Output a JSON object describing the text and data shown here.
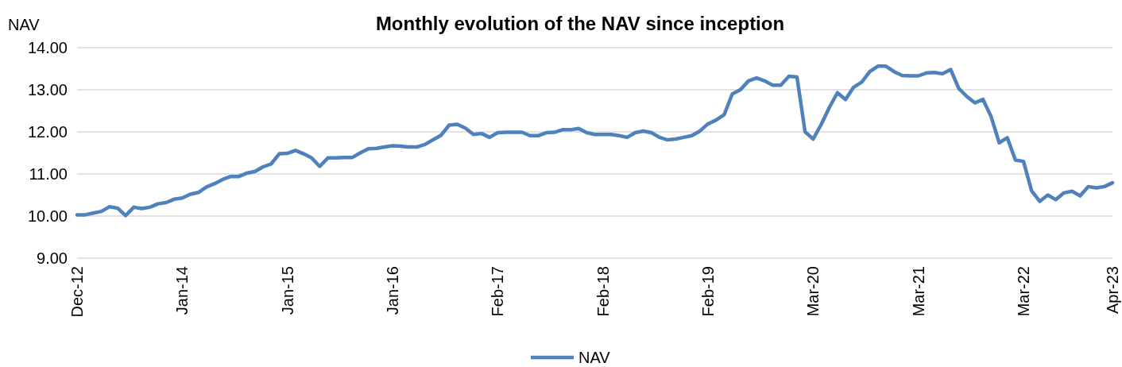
{
  "chart_data": {
    "type": "line",
    "title": "Monthly evolution of the NAV since inception",
    "ylabel": "NAV",
    "categories": [
      "Dec-12",
      null,
      null,
      null,
      null,
      null,
      null,
      null,
      null,
      null,
      null,
      null,
      null,
      "Jan-14",
      null,
      null,
      null,
      null,
      null,
      null,
      null,
      null,
      null,
      null,
      null,
      null,
      "Jan-15",
      null,
      null,
      null,
      null,
      null,
      null,
      null,
      null,
      null,
      null,
      null,
      null,
      "Jan-16",
      null,
      null,
      null,
      null,
      null,
      null,
      null,
      null,
      null,
      null,
      null,
      null,
      "Feb-17",
      null,
      null,
      null,
      null,
      null,
      null,
      null,
      null,
      null,
      null,
      null,
      null,
      "Feb-18",
      null,
      null,
      null,
      null,
      null,
      null,
      null,
      null,
      null,
      null,
      null,
      null,
      "Feb-19",
      null,
      null,
      null,
      null,
      null,
      null,
      null,
      null,
      null,
      null,
      null,
      null,
      "Mar-20",
      null,
      null,
      null,
      null,
      null,
      null,
      null,
      null,
      null,
      null,
      null,
      null,
      "Mar-21",
      null,
      null,
      null,
      null,
      null,
      null,
      null,
      null,
      null,
      null,
      null,
      null,
      "Mar-22",
      null,
      null,
      null,
      null,
      null,
      null,
      null,
      null,
      null,
      null,
      "Apr-23"
    ],
    "series": [
      {
        "name": "NAV",
        "color": "#4f81bd",
        "values": [
          10.03,
          10.03,
          10.07,
          10.11,
          10.22,
          10.19,
          10.01,
          10.21,
          10.18,
          10.21,
          10.29,
          10.32,
          10.4,
          10.43,
          10.52,
          10.56,
          10.69,
          10.77,
          10.87,
          10.94,
          10.94,
          11.02,
          11.06,
          11.17,
          11.24,
          11.48,
          11.49,
          11.56,
          11.48,
          11.38,
          11.18,
          11.38,
          11.38,
          11.39,
          11.39,
          11.5,
          11.6,
          11.61,
          11.64,
          11.67,
          11.66,
          11.64,
          11.64,
          11.7,
          11.81,
          11.92,
          12.16,
          12.18,
          12.09,
          11.94,
          11.96,
          11.87,
          11.98,
          11.99,
          11.99,
          11.99,
          11.91,
          11.91,
          11.98,
          11.99,
          12.05,
          12.05,
          12.08,
          11.98,
          11.94,
          11.94,
          11.94,
          11.91,
          11.87,
          11.98,
          12.02,
          11.98,
          11.87,
          11.81,
          11.83,
          11.87,
          11.91,
          12.02,
          12.19,
          12.28,
          12.41,
          12.9,
          13.0,
          13.21,
          13.28,
          13.21,
          13.11,
          13.11,
          13.32,
          13.3,
          12.0,
          11.83,
          12.18,
          12.58,
          12.93,
          12.77,
          13.06,
          13.18,
          13.43,
          13.56,
          13.56,
          13.43,
          13.34,
          13.33,
          13.33,
          13.4,
          13.41,
          13.38,
          13.48,
          13.03,
          12.84,
          12.69,
          12.77,
          12.36,
          11.74,
          11.86,
          11.33,
          11.3,
          10.6,
          10.35,
          10.5,
          10.39,
          10.55,
          10.59,
          10.48,
          10.7,
          10.67,
          10.7,
          10.79
        ]
      }
    ],
    "ylim": [
      9,
      14
    ],
    "yticks": [
      {
        "value": 9,
        "label": "9.00"
      },
      {
        "value": 10,
        "label": "10.00"
      },
      {
        "value": 11,
        "label": "11.00"
      },
      {
        "value": 12,
        "label": "12.00"
      },
      {
        "value": 13,
        "label": "13.00"
      },
      {
        "value": 14,
        "label": "14.00"
      }
    ],
    "grid": "y",
    "legend": "bottom",
    "line_style": "solid",
    "marker": "none"
  }
}
